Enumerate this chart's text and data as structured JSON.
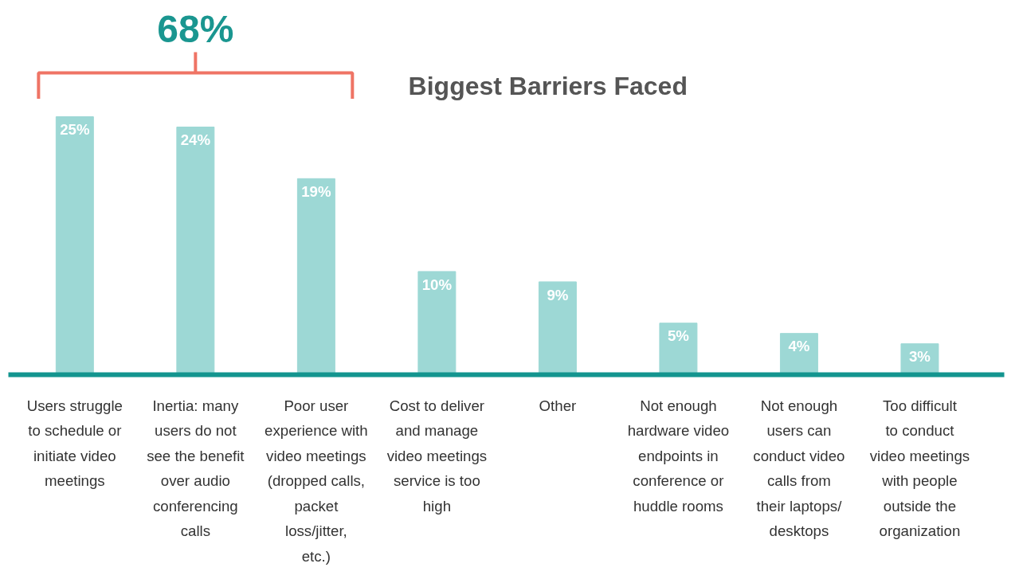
{
  "chart_data": {
    "type": "bar",
    "title": "Biggest Barriers Faced",
    "categories": [
      "Users struggle to schedule or initiate video meetings",
      "Inertia: many users do not see the benefit over audio conferencing calls",
      "Poor user experience with video meetings (dropped calls, packet loss/jitter, etc.)",
      "Cost to deliver and manage video meetings service is too high",
      "Other",
      "Not enough hardware video endpoints in conference or huddle rooms",
      "Not enough users can conduct video calls from their laptops/ desktops",
      "Too difficult to conduct video meetings with people outside the organization"
    ],
    "values": [
      25,
      24,
      19,
      10,
      9,
      5,
      4,
      3
    ],
    "color": "#9dd8d5",
    "data_labels": true,
    "value_labels": [
      "25%",
      "24%",
      "19%",
      "10%",
      "9%",
      "5%",
      "4%",
      "3%"
    ],
    "annotations": [
      "68%"
    ],
    "grid": false
  }
}
